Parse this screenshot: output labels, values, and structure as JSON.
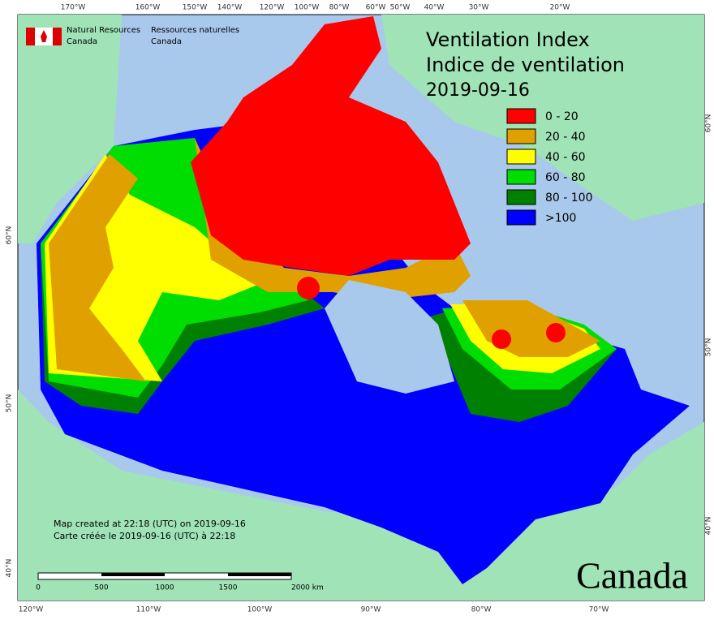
{
  "header": {
    "title_en": "Ventilation Index",
    "title_fr": "Indice de ventilation",
    "date": "2019-09-16"
  },
  "agency": {
    "en_line1": "Natural Resources",
    "en_line2": "Canada",
    "fr_line1": "Ressources naturelles",
    "fr_line2": "Canada"
  },
  "legend": [
    {
      "label": "0 - 20",
      "color": "#ff0000"
    },
    {
      "label": "20 - 40",
      "color": "#e0a000"
    },
    {
      "label": "40 - 60",
      "color": "#ffff00"
    },
    {
      "label": "60 - 80",
      "color": "#00dd00"
    },
    {
      "label": "80 - 100",
      "color": "#008000"
    },
    {
      "label": ">100",
      "color": "#0000ff"
    }
  ],
  "notes": [
    "Map created at 22:18 (UTC) on 2019-09-16",
    "Carte créée le 2019-09-16 (UTC) à 22:18"
  ],
  "scale_bar": [
    "0",
    "500",
    "1000",
    "1500",
    "2000  km"
  ],
  "graticule": {
    "top": [
      "170°W",
      "160°W",
      "150°W",
      "140°W",
      "120°W",
      "100°W",
      "80°W",
      "60°W",
      "50°W",
      "40°W",
      "30°W",
      "20°W"
    ],
    "bottom": [
      "120°W",
      "110°W",
      "100°W",
      "90°W",
      "80°W",
      "70°W"
    ],
    "left": [
      "60°N",
      "50°N",
      "40°N"
    ],
    "right": [
      "60°N",
      "50°N",
      "40°N"
    ]
  },
  "wordmark": "Canada"
}
